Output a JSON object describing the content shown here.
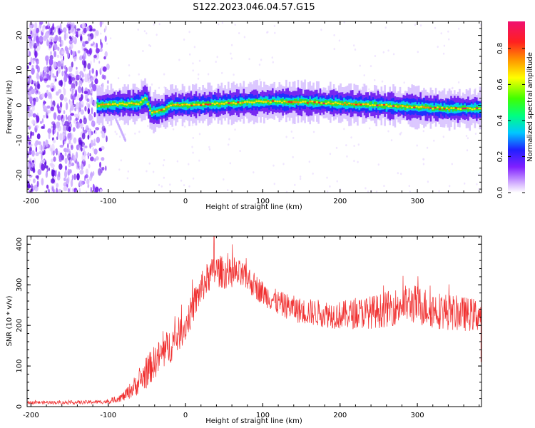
{
  "title": "S122.2023.046.04.57.G15",
  "colors": {
    "snr_line": "#f03030",
    "frame": "#000000",
    "background": "#ffffff"
  },
  "chart_data": [
    {
      "type": "heatmap",
      "title": "S122.2023.046.04.57.G15",
      "xlabel": "Height of straight line (km)",
      "ylabel": "Frequency (Hz)",
      "xlim": [
        -205,
        383
      ],
      "ylim": [
        -25,
        24
      ],
      "xticks": [
        -200,
        -100,
        0,
        100,
        200,
        300
      ],
      "xtick_labels": [
        "-200",
        "-100",
        "0",
        "100",
        "200",
        "300"
      ],
      "yticks": [
        -20,
        -10,
        0,
        10,
        20
      ],
      "ytick_labels": [
        "-20",
        "-10",
        "0",
        "10",
        "20"
      ],
      "colorbar": {
        "label": "Normalized spectral amplitude",
        "range": [
          0,
          0.95
        ],
        "ticks": [
          0.0,
          0.2,
          0.4,
          0.6,
          0.8
        ],
        "tick_labels": [
          "0.0",
          "0.2",
          "0.4",
          "0.6",
          "0.8"
        ],
        "colormap": "rainbow (white-violet-blue-cyan-green-yellow-red-magenta)"
      },
      "features": {
        "noise_region_x": [
          -205,
          -100
        ],
        "signal_start_x": -115,
        "ridge": [
          {
            "x": -115,
            "f": 0.0
          },
          {
            "x": -60,
            "f": 0.5
          },
          {
            "x": -52,
            "f": 2.0
          },
          {
            "x": -45,
            "f": -2.0
          },
          {
            "x": -30,
            "f": -1.5
          },
          {
            "x": -20,
            "f": 0.0
          },
          {
            "x": 0,
            "f": 0.0
          },
          {
            "x": 50,
            "f": 0.5
          },
          {
            "x": 100,
            "f": 1.0
          },
          {
            "x": 150,
            "f": 1.0
          },
          {
            "x": 200,
            "f": 0.5
          },
          {
            "x": 250,
            "f": 0.0
          },
          {
            "x": 300,
            "f": -0.5
          },
          {
            "x": 340,
            "f": -1.0
          },
          {
            "x": 383,
            "f": -1.0
          }
        ],
        "side_streak": [
          {
            "x": -92,
            "f": -3.0
          },
          {
            "x": -78,
            "f": -10.0
          }
        ]
      }
    },
    {
      "type": "line",
      "xlabel": "Height of straight line (km)",
      "ylabel": "SNR (10 * v/v)",
      "xlim": [
        -205,
        383
      ],
      "ylim": [
        0,
        420
      ],
      "xticks": [
        -200,
        -100,
        0,
        100,
        200,
        300
      ],
      "xtick_labels": [
        "-200",
        "-100",
        "0",
        "100",
        "200",
        "300"
      ],
      "yticks": [
        0,
        100,
        200,
        300,
        400
      ],
      "ytick_labels": [
        "0",
        "100",
        "200",
        "300",
        "400"
      ],
      "series": [
        {
          "envelope_x": [
            -205,
            -150,
            -100,
            -80,
            -60,
            -40,
            -20,
            0,
            10,
            20,
            30,
            40,
            50,
            60,
            70,
            80,
            100,
            120,
            150,
            200,
            250,
            290,
            320,
            350,
            383
          ],
          "envelope_y": [
            10,
            10,
            12,
            25,
            60,
            110,
            150,
            200,
            245,
            290,
            320,
            335,
            330,
            325,
            325,
            315,
            280,
            255,
            235,
            225,
            235,
            255,
            240,
            230,
            225
          ],
          "spread_x": [
            -205,
            -100,
            -80,
            -50,
            -20,
            0,
            50,
            100,
            200,
            300,
            383
          ],
          "spread_y": [
            4,
            5,
            12,
            40,
            45,
            40,
            40,
            30,
            35,
            50,
            40
          ],
          "peak_y": 420,
          "peak_x": 37
        }
      ]
    }
  ]
}
